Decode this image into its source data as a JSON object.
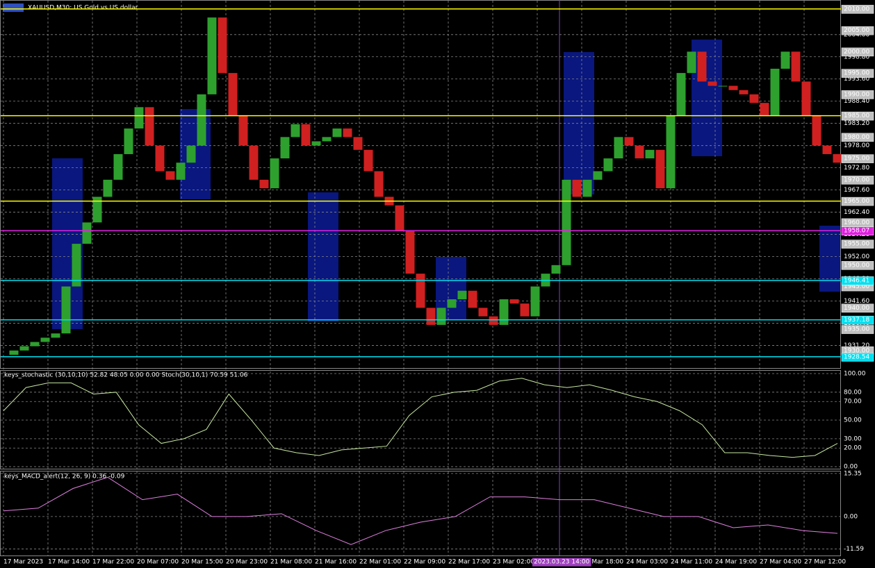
{
  "main": {
    "title": "XAUUSD,M30: US Gold vs US dollar",
    "ylim": [
      1925.9,
      2012.1
    ],
    "yticks": [
      {
        "value": 2004,
        "label": "2004.00"
      },
      {
        "value": 1998.8,
        "label": "1998.80"
      },
      {
        "value": 1993.6,
        "label": "1993.60"
      },
      {
        "value": 1988.4,
        "label": "1988.40"
      },
      {
        "value": 1983.2,
        "label": "1983.20"
      },
      {
        "value": 1978,
        "label": "1978.00"
      },
      {
        "value": 1972.8,
        "label": "1972.80"
      },
      {
        "value": 1967.6,
        "label": "1967.60"
      },
      {
        "value": 1962.4,
        "label": "1962.40"
      },
      {
        "value": 1957.2,
        "label": "1957.20"
      },
      {
        "value": 1952,
        "label": "1952.00"
      },
      {
        "value": 1946.8,
        "label": "1946.80"
      },
      {
        "value": 1941.6,
        "label": "1941.60"
      },
      {
        "value": 1936.4,
        "label": "1936.40"
      },
      {
        "value": 1931.2,
        "label": "1931.20"
      }
    ],
    "price_marks": [
      {
        "value": 2005,
        "label": "2005.00"
      },
      {
        "value": 2000,
        "label": "2000.00"
      },
      {
        "value": 1995,
        "label": "1995.00"
      },
      {
        "value": 1990,
        "label": "1990.00"
      },
      {
        "value": 1980,
        "label": "1980.00"
      },
      {
        "value": 1975,
        "label": "1975.00"
      },
      {
        "value": 1970,
        "label": "1970.00"
      },
      {
        "value": 1960,
        "label": "1960.00"
      },
      {
        "value": 1955,
        "label": "1955.00"
      },
      {
        "value": 1950,
        "label": "1950.00"
      },
      {
        "value": 1945,
        "label": "1945.00"
      },
      {
        "value": 1940,
        "label": "1940.00"
      },
      {
        "value": 1935,
        "label": "1935.00"
      },
      {
        "value": 1930,
        "label": "1930.00"
      }
    ],
    "levels": [
      {
        "value": 2010,
        "label": "2010.00",
        "color": "#ffff00",
        "box_color": "#c0c0c0"
      },
      {
        "value": 1985,
        "label": "1985.00",
        "color": "#ffff00",
        "box_color": "#c0c0c0"
      },
      {
        "value": 1965,
        "label": "1965.00",
        "color": "#ffff00",
        "box_color": "#c0c0c0"
      },
      {
        "value": 1958.07,
        "label": "1958.07",
        "color": "#e020e0",
        "box_color": "#e020e0"
      },
      {
        "value": 1946.41,
        "label": "1946.41",
        "color": "#00e0f0",
        "box_color": "#00e0f0"
      },
      {
        "value": 1937.18,
        "label": "1937.18",
        "color": "#00e0f0",
        "box_color": "#00e0f0"
      },
      {
        "value": 1928.54,
        "label": "1928.54",
        "color": "#00e0f0",
        "box_color": "#00e0f0"
      }
    ],
    "price": [
      1929,
      1930,
      1931,
      1932,
      1933,
      1934,
      1945,
      1955,
      1960,
      1966,
      1970,
      1976,
      1982,
      1987,
      1978,
      1972,
      1970,
      1974,
      1978,
      1990,
      2008,
      1995,
      1985,
      1978,
      1970,
      1968,
      1975,
      1980,
      1983,
      1978,
      1979,
      1980,
      1982,
      1980,
      1977,
      1972,
      1966,
      1964,
      1958,
      1948,
      1940,
      1936,
      1940,
      1942,
      1944,
      1940,
      1938,
      1936,
      1942,
      1941,
      1938,
      1945,
      1948,
      1950,
      1970,
      1966,
      1970,
      1972,
      1975,
      1980,
      1978,
      1975,
      1977,
      1968,
      1985,
      1995,
      2000,
      1993,
      1992,
      1992,
      1991,
      1990,
      1988,
      1985,
      1996,
      2000,
      1993,
      1985,
      1978,
      1976,
      1974
    ],
    "up_color": "#2ea02e",
    "down_color": "#d02020",
    "time_labels": [
      "17 Mar 2023",
      "17 Mar 14:00",
      "17 Mar 22:00",
      "20 Mar 07:00",
      "20 Mar 15:00",
      "20 Mar 23:00",
      "21 Mar 08:00",
      "21 Mar 16:00",
      "22 Mar 01:00",
      "22 Mar 09:00",
      "22 Mar 17:00",
      "23 Mar 02:00",
      null,
      "23 Mar 18:00",
      "24 Mar 03:00",
      "24 Mar 11:00",
      "24 Mar 19:00",
      "27 Mar 04:00",
      "27 Mar 12:00"
    ],
    "cursor_label": "2023.03.23 14:00"
  },
  "stochastic": {
    "title": "keys_stochastic (30,10,10) 52.82 48.05 0.00 0.00 Stoch(30,10,1) 70.59 51.06",
    "ylim": [
      -2.2,
      103
    ],
    "yticks": [
      {
        "value": 100,
        "label": "100.00"
      },
      {
        "value": 80,
        "label": "80.00"
      },
      {
        "value": 70,
        "label": "70.00"
      },
      {
        "value": 50,
        "label": "50.00"
      },
      {
        "value": 30,
        "label": "30.00"
      },
      {
        "value": 20,
        "label": "20.00"
      },
      {
        "value": 0,
        "label": "0.00"
      }
    ],
    "values": [
      60,
      85,
      90,
      90,
      78,
      80,
      45,
      25,
      30,
      40,
      78,
      50,
      20,
      15,
      12,
      18,
      20,
      22,
      55,
      75,
      80,
      82,
      92,
      95,
      88,
      85,
      88,
      82,
      75,
      70,
      60,
      45,
      15,
      15,
      12,
      10,
      12,
      25
    ],
    "color": "#c8e8a0"
  },
  "macd": {
    "title": "keys_MACD_alert(12, 26, 9) 0.36 -0.09",
    "ylim": [
      -13.9,
      16.07
    ],
    "yticks": [
      {
        "value": 15.35,
        "label": "15.35"
      },
      {
        "value": 0,
        "label": "0.00"
      },
      {
        "value": -11.59,
        "label": "-11.59"
      }
    ],
    "values": [
      2,
      3,
      10,
      14,
      6,
      8,
      0,
      0,
      1,
      -5,
      -10,
      -5,
      -2,
      0,
      7,
      7,
      6,
      6,
      3,
      0,
      0,
      -4,
      -3,
      -5,
      -6
    ],
    "color": "#e080e0"
  }
}
